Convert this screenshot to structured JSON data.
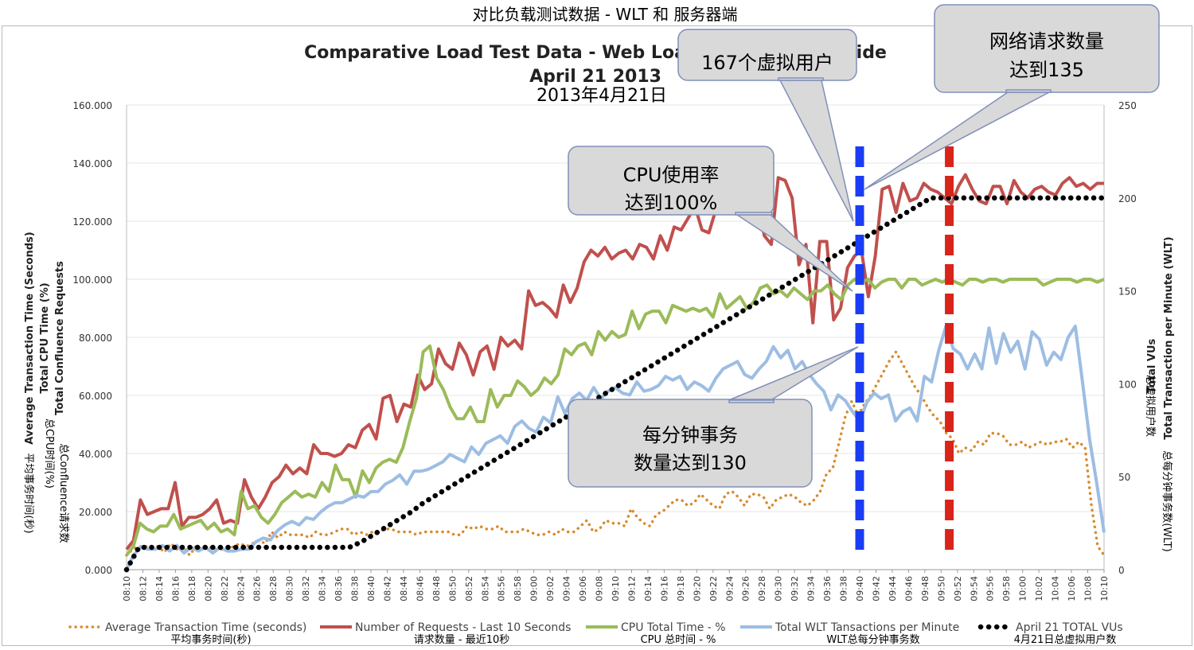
{
  "outer_title": "对比负载测试数据 - WLT 和 服务器端",
  "chart_data": {
    "type": "line",
    "title": "Comparative Load Test Data - Web Load Test & Server Side",
    "subtitle": "April 21 2013",
    "subtitle_cn": "2013年4月21日",
    "left_axis": {
      "labels": [
        "Average Transaction Time (Seconds)",
        "Total CPU Time (%)",
        "Total Confluence Requests"
      ],
      "labels_cn": [
        "平均事务时间(秒)",
        "总CPU时间(%)",
        "总Confluence请求数"
      ],
      "ylim": [
        0,
        160
      ],
      "ticks": [
        "0.000",
        "20.000",
        "40.000",
        "60.000",
        "80.000",
        "100.000",
        "120.000",
        "140.000",
        "160.000"
      ]
    },
    "right_axis": {
      "labels": [
        "Total VUs",
        "Total Transaction per Minute (WLT)"
      ],
      "labels_cn": [
        "总虚拟用户数",
        "总每分钟事务数(WLT)"
      ],
      "ylim": [
        0,
        250
      ],
      "ticks": [
        "0",
        "50",
        "100",
        "150",
        "200",
        "250"
      ]
    },
    "x_tick_labels": [
      "08:10",
      "08:12",
      "08:14",
      "08:16",
      "08:18",
      "08:20",
      "08:22",
      "08:24",
      "08:26",
      "08:28",
      "08:30",
      "08:32",
      "08:34",
      "08:36",
      "08:38",
      "08:40",
      "08:42",
      "08:44",
      "08:46",
      "08:48",
      "08:50",
      "08:52",
      "08:54",
      "08:56",
      "08:58",
      "09:00",
      "09:02",
      "09:04",
      "09:06",
      "09:08",
      "09:10",
      "09:12",
      "09:14",
      "09:16",
      "09:18",
      "09:20",
      "09:22",
      "09:24",
      "09:26",
      "09:28",
      "09:30",
      "09:32",
      "09:34",
      "09:36",
      "09:38",
      "09:40",
      "09:42",
      "09:44",
      "09:46",
      "09:48",
      "09:50",
      "09:52",
      "09:54",
      "09:56",
      "09:58",
      "10:00",
      "10:02",
      "10:04",
      "10:06",
      "10:08",
      "10:10"
    ],
    "x_start": "08:10",
    "x_end": "10:10",
    "series": [
      {
        "name": "Average Transaction Time (seconds)",
        "name_cn": "平均事务时间(秒)",
        "axis": "left",
        "color": "#d98a2e",
        "style": "dotted",
        "values": [
          5,
          7,
          8,
          8,
          8,
          8,
          6,
          9,
          7,
          8,
          5,
          8,
          7,
          8,
          7,
          7,
          7,
          8,
          9,
          8,
          9,
          10,
          9,
          13,
          11,
          13,
          12,
          12,
          12,
          11,
          13,
          12,
          12,
          13,
          14,
          14,
          12,
          13,
          12,
          13,
          13,
          14,
          14,
          13,
          13,
          13,
          12,
          13,
          13,
          13,
          13,
          13,
          12,
          12,
          15,
          14,
          15,
          14,
          14,
          15,
          13,
          13,
          13,
          14,
          13,
          12,
          12,
          13,
          12,
          14,
          13,
          13,
          15,
          17,
          13,
          14,
          17,
          16,
          16,
          15,
          21,
          18,
          16,
          15,
          19,
          20,
          22,
          24,
          24,
          22,
          23,
          26,
          24,
          22,
          21,
          26,
          27,
          25,
          22,
          26,
          26,
          25,
          21,
          24,
          25,
          26,
          25,
          23,
          22,
          24,
          27,
          33,
          35,
          44,
          53,
          58,
          53,
          57,
          60,
          64,
          68,
          72,
          75,
          71,
          67,
          63,
          60,
          56,
          53,
          51,
          47,
          45,
          40,
          42,
          41,
          44,
          43,
          47,
          47,
          46,
          43,
          43,
          44,
          42,
          43,
          44,
          43,
          44,
          44,
          45,
          42,
          44,
          42,
          22,
          8,
          5
        ]
      },
      {
        "name": "Number of Requests - Last 10 Seconds",
        "name_cn": "请求数量 - 最近10秒",
        "axis": "left",
        "color": "#c0504d",
        "style": "solid",
        "values": [
          7,
          10,
          24,
          19,
          20,
          21,
          21,
          30,
          15,
          18,
          18,
          19,
          21,
          24,
          16,
          17,
          16,
          31,
          25,
          21,
          25,
          30,
          32,
          36,
          33,
          35,
          33,
          43,
          40,
          40,
          39,
          40,
          43,
          42,
          48,
          50,
          45,
          59,
          60,
          51,
          57,
          56,
          67,
          62,
          64,
          76,
          71,
          69,
          78,
          74,
          67,
          75,
          77,
          69,
          80,
          77,
          79,
          76,
          96,
          91,
          92,
          90,
          87,
          98,
          92,
          97,
          106,
          110,
          108,
          111,
          107,
          109,
          110,
          107,
          112,
          111,
          107,
          115,
          110,
          118,
          117,
          121,
          125,
          117,
          116,
          124,
          132,
          128,
          134,
          130,
          127,
          127,
          115,
          112,
          135,
          134,
          128,
          105,
          112,
          85,
          113,
          113,
          86,
          90,
          104,
          108,
          110,
          94,
          108,
          131,
          132,
          123,
          133,
          127,
          128,
          133,
          131,
          130,
          128,
          126,
          132,
          136,
          131,
          127,
          126,
          132,
          132,
          126,
          134,
          130,
          128,
          131,
          132,
          130,
          129,
          133,
          135,
          132,
          133,
          131,
          133,
          133
        ]
      },
      {
        "name": "CPU Total Time - %",
        "name_cn": "CPU 总时间 - %",
        "axis": "left",
        "color": "#9bbb59",
        "style": "solid",
        "values": [
          5,
          8,
          16,
          14,
          13,
          15,
          15,
          19,
          14,
          15,
          16,
          17,
          14,
          16,
          13,
          14,
          12,
          27,
          21,
          22,
          18,
          16,
          19,
          23,
          25,
          27,
          25,
          26,
          25,
          30,
          27,
          36,
          31,
          31,
          25,
          34,
          30,
          35,
          37,
          38,
          37,
          42,
          51,
          59,
          75,
          77,
          66,
          62,
          56,
          52,
          52,
          56,
          51,
          51,
          62,
          56,
          60,
          60,
          65,
          63,
          60,
          62,
          66,
          64,
          67,
          76,
          74,
          77,
          78,
          74,
          82,
          79,
          82,
          80,
          81,
          89,
          83,
          88,
          89,
          89,
          85,
          91,
          90,
          89,
          90,
          89,
          90,
          87,
          95,
          90,
          92,
          94,
          90,
          92,
          97,
          98,
          95,
          96,
          94,
          97,
          95,
          93,
          96,
          96,
          98,
          95,
          93,
          98,
          100,
          99,
          100,
          97,
          99,
          100,
          100,
          97,
          100,
          100,
          98,
          99,
          100,
          99,
          100,
          99,
          98,
          100,
          100,
          99,
          100,
          100,
          99,
          100,
          100,
          100,
          100,
          100,
          98,
          99,
          100,
          100,
          100,
          99,
          100,
          100,
          99,
          100
        ]
      },
      {
        "name": "Total WLT Tansactions per Minute",
        "name_cn": "WLT总每分钟事务数",
        "axis": "right",
        "color": "#9dbde3",
        "style": "solid",
        "values": [
          0,
          8,
          12,
          11,
          11,
          13,
          10,
          13,
          9,
          12,
          10,
          12,
          9,
          12,
          10,
          10,
          11,
          11,
          15,
          17,
          16,
          21,
          24,
          26,
          24,
          28,
          27,
          31,
          34,
          36,
          36,
          38,
          40,
          39,
          42,
          42,
          46,
          48,
          51,
          46,
          53,
          53,
          54,
          56,
          58,
          62,
          60,
          58,
          66,
          62,
          68,
          70,
          72,
          68,
          77,
          80,
          76,
          74,
          82,
          79,
          93,
          84,
          92,
          95,
          91,
          98,
          92,
          96,
          98,
          95,
          94,
          101,
          96,
          97,
          99,
          104,
          102,
          104,
          97,
          101,
          99,
          96,
          103,
          108,
          110,
          112,
          105,
          103,
          108,
          112,
          120,
          114,
          118,
          108,
          112,
          105,
          100,
          96,
          86,
          94,
          91,
          85,
          80,
          90,
          95,
          92,
          94,
          80,
          85,
          87,
          80,
          104,
          101,
          118,
          131,
          119,
          116,
          108,
          116,
          108,
          130,
          111,
          127,
          117,
          123,
          108,
          128,
          124,
          110,
          117,
          113,
          125,
          131,
          101,
          70,
          46,
          20
        ]
      },
      {
        "name": "April 21 TOTAL VUs",
        "name_cn": "4月21日总虚拟用户数",
        "axis": "right",
        "color": "#000000",
        "style": "dots",
        "values": [
          0,
          12,
          12,
          12,
          12,
          12,
          12,
          12,
          12,
          12,
          12,
          12,
          12,
          12,
          12,
          12,
          12,
          12,
          12,
          15,
          19,
          23,
          27,
          31,
          36,
          40,
          44,
          48,
          52,
          56,
          60,
          64,
          68,
          72,
          76,
          80,
          84,
          88,
          92,
          96,
          100,
          104,
          108,
          112,
          116,
          120,
          124,
          128,
          132,
          136,
          140,
          144,
          148,
          152,
          156,
          160,
          164,
          168,
          172,
          176,
          180,
          184,
          188,
          192,
          196,
          200,
          200,
          200,
          200,
          200,
          200,
          200,
          200,
          200,
          200,
          200,
          200,
          200,
          200,
          200
        ]
      }
    ],
    "legend_position": "bottom",
    "markers": [
      {
        "color": "#1a3cf5",
        "time": "09:40"
      },
      {
        "color": "#d9241a",
        "time": "09:51"
      }
    ],
    "callouts": [
      {
        "lines": [
          "167个虚拟用户"
        ]
      },
      {
        "lines": [
          "网络请求数量",
          "达到135"
        ]
      },
      {
        "lines": [
          "CPU使用率",
          "达到100%"
        ]
      },
      {
        "lines": [
          "每分钟事务",
          "数量达到130"
        ]
      }
    ]
  }
}
